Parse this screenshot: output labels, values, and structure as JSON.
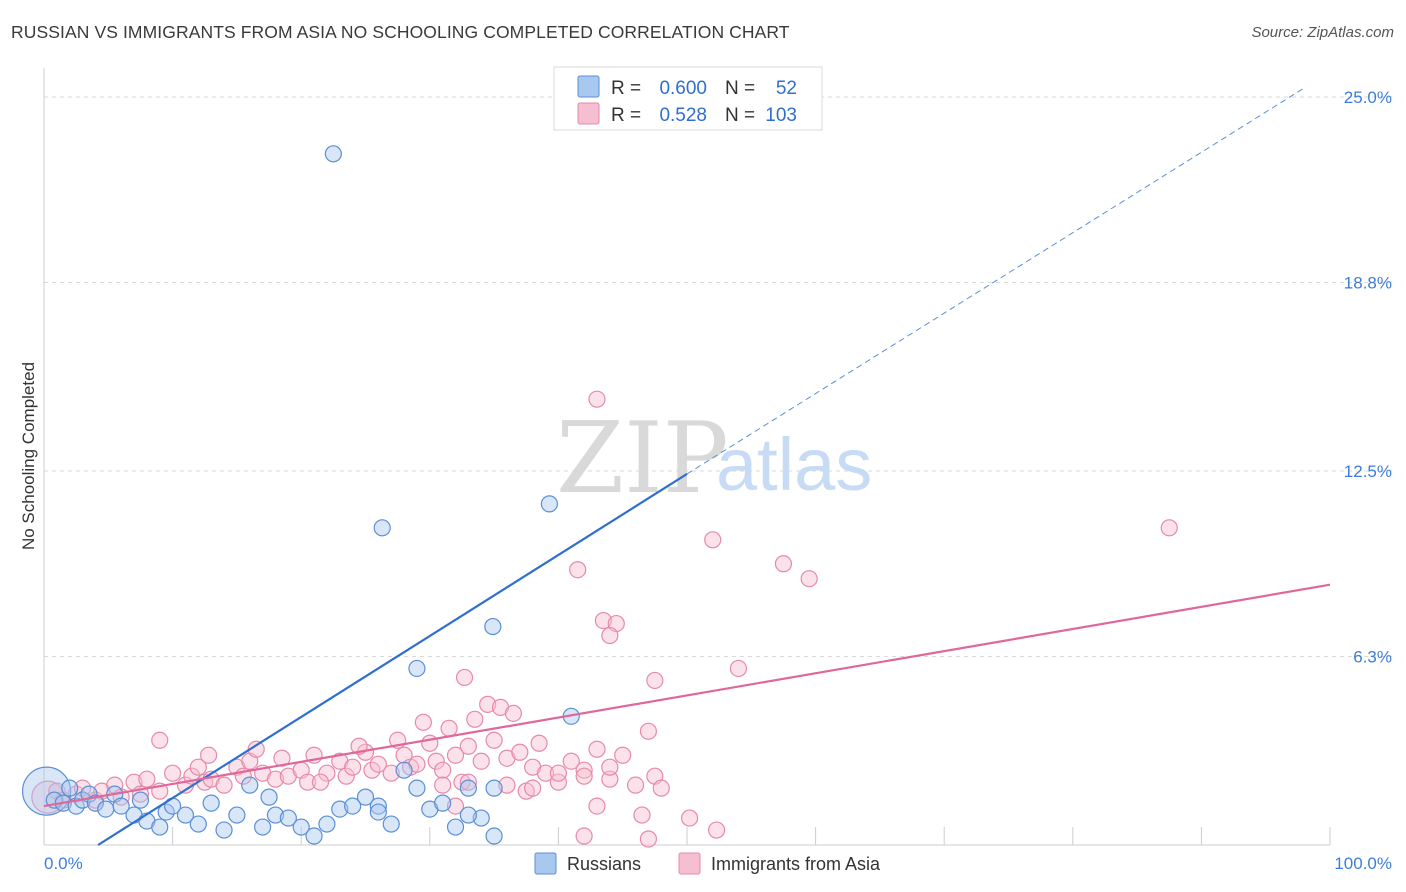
{
  "title": "RUSSIAN VS IMMIGRANTS FROM ASIA NO SCHOOLING COMPLETED CORRELATION CHART",
  "source": "Source: ZipAtlas.com",
  "watermark": {
    "zip": "ZIP",
    "atlas": "atlas"
  },
  "legend": {
    "r_label": "R =",
    "n_label": "N =",
    "rows": [
      {
        "r": "0.600",
        "n": "52",
        "color": "#a9c8f0",
        "stroke": "#5b8fd6"
      },
      {
        "r": "0.528",
        "n": "103",
        "color": "#f6bfd1",
        "stroke": "#e68aa8"
      }
    ]
  },
  "bottom_legend": [
    {
      "label": "Russians",
      "color": "#a9c8f0",
      "stroke": "#5b8fd6"
    },
    {
      "label": "Immigrants from Asia",
      "color": "#f6bfd1",
      "stroke": "#e68aa8"
    }
  ],
  "chart_data": {
    "type": "scatter",
    "title": "RUSSIAN VS IMMIGRANTS FROM ASIA NO SCHOOLING COMPLETED CORRELATION CHART",
    "xlabel": "",
    "ylabel": "No Schooling Completed",
    "xlim": [
      0,
      100
    ],
    "ylim": [
      0,
      25.6
    ],
    "x_tick_labels": [
      "0.0%",
      "100.0%"
    ],
    "y_ticks": [
      6.3,
      12.5,
      18.8,
      25.0
    ],
    "y_tick_labels": [
      "6.3%",
      "12.5%",
      "18.8%",
      "25.0%"
    ],
    "grid": true,
    "legend_position": "top-center",
    "series": [
      {
        "name": "Russians",
        "color": "#5b8fd6",
        "fill": "#a9c8f0",
        "trendline": {
          "x": [
            4.2,
            50.0
          ],
          "y": [
            0.0,
            12.4
          ],
          "dashed_extension": {
            "x": [
              50.0,
              98.0
            ],
            "y": [
              12.4,
              25.3
            ]
          }
        },
        "points": [
          [
            0.2,
            1.8,
            3
          ],
          [
            0.8,
            1.5,
            1
          ],
          [
            1.5,
            1.4,
            1
          ],
          [
            2.0,
            1.9,
            1
          ],
          [
            2.5,
            1.3,
            1
          ],
          [
            3.0,
            1.5,
            1
          ],
          [
            3.5,
            1.7,
            1
          ],
          [
            4.0,
            1.4,
            1
          ],
          [
            4.8,
            1.2,
            1
          ],
          [
            5.5,
            1.7,
            1
          ],
          [
            6.0,
            1.3,
            1
          ],
          [
            7.0,
            1.0,
            1
          ],
          [
            7.5,
            1.5,
            1
          ],
          [
            8.0,
            0.8,
            1
          ],
          [
            9.0,
            0.6,
            1
          ],
          [
            9.5,
            1.1,
            1
          ],
          [
            10.0,
            1.3,
            1
          ],
          [
            11.0,
            1.0,
            1
          ],
          [
            12.0,
            0.7,
            1
          ],
          [
            13.0,
            1.4,
            1
          ],
          [
            14.0,
            0.5,
            1
          ],
          [
            15.0,
            1.0,
            1
          ],
          [
            16.0,
            2.0,
            1
          ],
          [
            17.0,
            0.6,
            1
          ],
          [
            17.5,
            1.6,
            1
          ],
          [
            18.0,
            1.0,
            1
          ],
          [
            19.0,
            0.9,
            1
          ],
          [
            20.0,
            0.6,
            1
          ],
          [
            21.0,
            0.3,
            1
          ],
          [
            22.0,
            0.7,
            1
          ],
          [
            23.0,
            1.2,
            1
          ],
          [
            24.0,
            1.3,
            1
          ],
          [
            25.0,
            1.6,
            1
          ],
          [
            26.0,
            1.3,
            1
          ],
          [
            27.0,
            0.7,
            1
          ],
          [
            28.0,
            2.5,
            1
          ],
          [
            29.0,
            1.9,
            1
          ],
          [
            30.0,
            1.2,
            1
          ],
          [
            31.0,
            1.4,
            1
          ],
          [
            32.0,
            0.6,
            1
          ],
          [
            33.0,
            1.9,
            1
          ],
          [
            34.0,
            0.9,
            1
          ],
          [
            35.0,
            0.3,
            1
          ],
          [
            35.0,
            1.9,
            1
          ],
          [
            26.0,
            1.1,
            1
          ],
          [
            22.5,
            23.1,
            1
          ],
          [
            26.3,
            10.6,
            1
          ],
          [
            39.3,
            11.4,
            1
          ],
          [
            34.9,
            7.3,
            1
          ],
          [
            29.0,
            5.9,
            1
          ],
          [
            33.0,
            1.0,
            1
          ],
          [
            41.0,
            4.3,
            1
          ]
        ]
      },
      {
        "name": "Immigrants from Asia",
        "color": "#e68aa8",
        "fill": "#f6bfd1",
        "trendline": {
          "x": [
            0,
            100
          ],
          "y": [
            1.3,
            8.7
          ]
        },
        "points": [
          [
            0.3,
            1.6,
            2
          ],
          [
            1.0,
            1.8,
            1
          ],
          [
            1.5,
            1.5,
            1
          ],
          [
            2.5,
            1.7,
            1
          ],
          [
            3.0,
            1.9,
            1
          ],
          [
            4.0,
            1.5,
            1
          ],
          [
            4.5,
            1.8,
            1
          ],
          [
            5.5,
            2.0,
            1
          ],
          [
            6.0,
            1.6,
            1
          ],
          [
            7.0,
            2.1,
            1
          ],
          [
            7.5,
            1.7,
            1
          ],
          [
            8.0,
            2.2,
            1
          ],
          [
            9.0,
            1.8,
            1
          ],
          [
            10.0,
            2.4,
            1
          ],
          [
            11.0,
            2.0,
            1
          ],
          [
            11.5,
            2.3,
            1
          ],
          [
            12.0,
            2.6,
            1
          ],
          [
            12.5,
            2.1,
            1
          ],
          [
            13.0,
            2.2,
            1
          ],
          [
            14.0,
            2.0,
            1
          ],
          [
            15.0,
            2.6,
            1
          ],
          [
            15.5,
            2.3,
            1
          ],
          [
            16.0,
            2.8,
            1
          ],
          [
            17.0,
            2.4,
            1
          ],
          [
            18.0,
            2.2,
            1
          ],
          [
            18.5,
            2.9,
            1
          ],
          [
            19.0,
            2.3,
            1
          ],
          [
            20.0,
            2.5,
            1
          ],
          [
            20.5,
            2.1,
            1
          ],
          [
            21.0,
            3.0,
            1
          ],
          [
            22.0,
            2.4,
            1
          ],
          [
            23.0,
            2.8,
            1
          ],
          [
            23.5,
            2.3,
            1
          ],
          [
            24.0,
            2.6,
            1
          ],
          [
            25.0,
            3.1,
            1
          ],
          [
            25.5,
            2.5,
            1
          ],
          [
            26.0,
            2.7,
            1
          ],
          [
            27.0,
            2.4,
            1
          ],
          [
            28.0,
            3.0,
            1
          ],
          [
            28.5,
            2.6,
            1
          ],
          [
            29.0,
            2.7,
            1
          ],
          [
            30.0,
            3.4,
            1
          ],
          [
            30.5,
            2.8,
            1
          ],
          [
            31.0,
            2.5,
            1
          ],
          [
            32.0,
            3.0,
            1
          ],
          [
            32.5,
            2.1,
            1
          ],
          [
            33.0,
            3.3,
            1
          ],
          [
            34.0,
            2.8,
            1
          ],
          [
            35.0,
            3.5,
            1
          ],
          [
            36.0,
            2.9,
            1
          ],
          [
            37.0,
            3.1,
            1
          ],
          [
            38.0,
            2.6,
            1
          ],
          [
            38.5,
            3.4,
            1
          ],
          [
            39.0,
            2.4,
            1
          ],
          [
            40.0,
            2.1,
            1
          ],
          [
            41.0,
            2.8,
            1
          ],
          [
            42.0,
            2.5,
            1
          ],
          [
            43.0,
            3.2,
            1
          ],
          [
            44.0,
            2.2,
            1
          ],
          [
            45.0,
            3.0,
            1
          ],
          [
            9.0,
            3.5,
            1
          ],
          [
            12.8,
            3.0,
            1
          ],
          [
            16.5,
            3.2,
            1
          ],
          [
            21.5,
            2.1,
            1
          ],
          [
            24.5,
            3.3,
            1
          ],
          [
            27.5,
            3.5,
            1
          ],
          [
            29.5,
            4.1,
            1
          ],
          [
            31.5,
            3.9,
            1
          ],
          [
            33.5,
            4.2,
            1
          ],
          [
            34.5,
            4.7,
            1
          ],
          [
            35.5,
            4.6,
            1
          ],
          [
            36.5,
            4.4,
            1
          ],
          [
            32.7,
            5.6,
            1
          ],
          [
            31.0,
            2.0,
            1
          ],
          [
            33.0,
            2.1,
            1
          ],
          [
            36.0,
            2.0,
            1
          ],
          [
            37.5,
            1.8,
            1
          ],
          [
            38.0,
            1.9,
            1
          ],
          [
            40.0,
            2.4,
            1
          ],
          [
            42.0,
            2.3,
            1
          ],
          [
            44.0,
            2.6,
            1
          ],
          [
            46.0,
            2.0,
            1
          ],
          [
            47.0,
            3.8,
            1
          ],
          [
            47.5,
            2.3,
            1
          ],
          [
            46.5,
            1.0,
            1
          ],
          [
            48.0,
            1.9,
            1
          ],
          [
            43.0,
            1.3,
            1
          ],
          [
            32.0,
            1.3,
            1
          ],
          [
            42.0,
            0.3,
            1
          ],
          [
            47.0,
            0.2,
            1
          ],
          [
            50.2,
            0.9,
            1
          ],
          [
            52.3,
            0.5,
            1
          ],
          [
            43.0,
            14.9,
            1
          ],
          [
            41.5,
            9.2,
            1
          ],
          [
            43.5,
            7.5,
            1
          ],
          [
            44.5,
            7.4,
            1
          ],
          [
            44.0,
            7.0,
            1
          ],
          [
            52.0,
            10.2,
            1
          ],
          [
            57.5,
            9.4,
            1
          ],
          [
            59.5,
            8.9,
            1
          ],
          [
            54.0,
            5.9,
            1
          ],
          [
            47.5,
            5.5,
            1
          ],
          [
            87.5,
            10.6,
            1
          ]
        ]
      }
    ]
  }
}
